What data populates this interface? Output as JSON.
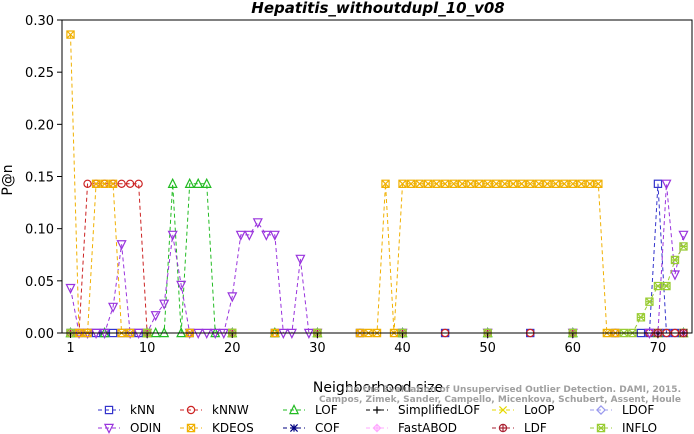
{
  "chart_data": {
    "type": "line",
    "title": "Hepatitis_withoutdupl_10_v08",
    "xlabel": "Neighborhood size",
    "ylabel": "P@n",
    "xlim": [
      0,
      74
    ],
    "ylim": [
      0,
      0.3
    ],
    "xticks": [
      1,
      10,
      20,
      30,
      40,
      50,
      60,
      70
    ],
    "yticks": [
      "0.00",
      "0.05",
      "0.10",
      "0.15",
      "0.20",
      "0.25",
      "0.30"
    ],
    "grid": false,
    "legend_position": "bottom",
    "watermark": [
      "Campos, Zimek, Sander, Campello, Micenkova, Schubert, Assent, Houle",
      "On the Evaluation of Unsupervised Outlier Detection. DAMI, 2015."
    ],
    "series": [
      {
        "name": "kNN",
        "color": "#3333cc",
        "marker": "square",
        "points": [
          [
            1,
            0
          ],
          [
            2,
            0
          ],
          [
            3,
            0
          ],
          [
            4,
            0
          ],
          [
            5,
            0
          ],
          [
            6,
            0
          ],
          [
            7,
            0
          ],
          [
            8,
            0
          ],
          [
            9,
            0
          ],
          [
            10,
            0
          ],
          [
            15,
            0
          ],
          [
            20,
            0
          ],
          [
            25,
            0
          ],
          [
            30,
            0
          ],
          [
            35,
            0
          ],
          [
            40,
            0
          ],
          [
            45,
            0
          ],
          [
            50,
            0
          ],
          [
            55,
            0
          ],
          [
            60,
            0
          ],
          [
            65,
            0
          ],
          [
            68,
            0
          ],
          [
            69,
            0
          ],
          [
            70,
            0.143
          ],
          [
            71,
            0
          ],
          [
            72,
            0
          ],
          [
            73,
            0
          ]
        ]
      },
      {
        "name": "kNNW",
        "color": "#cc2222",
        "marker": "circle",
        "points": [
          [
            1,
            0
          ],
          [
            2,
            0
          ],
          [
            3,
            0.143
          ],
          [
            4,
            0.143
          ],
          [
            5,
            0.143
          ],
          [
            6,
            0.143
          ],
          [
            7,
            0.143
          ],
          [
            8,
            0.143
          ],
          [
            9,
            0.143
          ],
          [
            10,
            0
          ],
          [
            15,
            0
          ],
          [
            20,
            0
          ],
          [
            25,
            0
          ],
          [
            30,
            0
          ],
          [
            35,
            0
          ],
          [
            40,
            0
          ],
          [
            45,
            0
          ],
          [
            50,
            0
          ],
          [
            55,
            0
          ],
          [
            60,
            0
          ],
          [
            65,
            0
          ],
          [
            69,
            0
          ],
          [
            70,
            0
          ],
          [
            71,
            0
          ],
          [
            72,
            0
          ],
          [
            73,
            0
          ]
        ]
      },
      {
        "name": "LOF",
        "color": "#22bb22",
        "marker": "triangle-up",
        "points": [
          [
            1,
            0
          ],
          [
            5,
            0
          ],
          [
            10,
            0
          ],
          [
            11,
            0
          ],
          [
            12,
            0
          ],
          [
            13,
            0.143
          ],
          [
            14,
            0
          ],
          [
            15,
            0.143
          ],
          [
            16,
            0.143
          ],
          [
            17,
            0.143
          ],
          [
            18,
            0
          ],
          [
            20,
            0
          ],
          [
            25,
            0
          ],
          [
            30,
            0
          ],
          [
            40,
            0
          ],
          [
            50,
            0
          ],
          [
            60,
            0
          ],
          [
            70,
            0
          ],
          [
            73,
            0
          ]
        ]
      },
      {
        "name": "SimplifiedLOF",
        "color": "#000000",
        "marker": "plus",
        "points": [
          [
            1,
            0
          ],
          [
            10,
            0
          ],
          [
            20,
            0
          ],
          [
            30,
            0
          ],
          [
            40,
            0
          ],
          [
            50,
            0
          ],
          [
            60,
            0
          ],
          [
            70,
            0
          ],
          [
            73,
            0
          ]
        ]
      },
      {
        "name": "LoOP",
        "color": "#e6d800",
        "marker": "x",
        "points": [
          [
            1,
            0
          ],
          [
            10,
            0
          ],
          [
            20,
            0
          ],
          [
            30,
            0
          ],
          [
            40,
            0
          ],
          [
            50,
            0
          ],
          [
            60,
            0
          ],
          [
            70,
            0
          ],
          [
            73,
            0
          ]
        ]
      },
      {
        "name": "LDOF",
        "color": "#9999ee",
        "marker": "diamond",
        "points": [
          [
            1,
            0
          ],
          [
            10,
            0
          ],
          [
            20,
            0
          ],
          [
            30,
            0
          ],
          [
            40,
            0
          ],
          [
            50,
            0
          ],
          [
            60,
            0
          ],
          [
            70,
            0
          ],
          [
            73,
            0
          ]
        ]
      },
      {
        "name": "ODIN",
        "color": "#9933dd",
        "marker": "triangle-down",
        "points": [
          [
            1,
            0.043
          ],
          [
            2,
            0
          ],
          [
            3,
            0
          ],
          [
            4,
            0
          ],
          [
            5,
            0
          ],
          [
            6,
            0.025
          ],
          [
            7,
            0.085
          ],
          [
            8,
            0
          ],
          [
            9,
            0
          ],
          [
            10,
            0
          ],
          [
            11,
            0.017
          ],
          [
            12,
            0.028
          ],
          [
            13,
            0.094
          ],
          [
            14,
            0.046
          ],
          [
            15,
            0
          ],
          [
            16,
            0
          ],
          [
            17,
            0
          ],
          [
            18,
            0
          ],
          [
            19,
            0
          ],
          [
            20,
            0.035
          ],
          [
            21,
            0.094
          ],
          [
            22,
            0.094
          ],
          [
            23,
            0.106
          ],
          [
            24,
            0.094
          ],
          [
            25,
            0.094
          ],
          [
            26,
            0
          ],
          [
            27,
            0
          ],
          [
            28,
            0.071
          ],
          [
            29,
            0
          ],
          [
            30,
            0
          ],
          [
            40,
            0
          ],
          [
            50,
            0
          ],
          [
            60,
            0
          ],
          [
            69,
            0
          ],
          [
            70,
            0
          ],
          [
            71,
            0.143
          ],
          [
            72,
            0.056
          ],
          [
            73,
            0.094
          ]
        ]
      },
      {
        "name": "KDEOS",
        "color": "#f0b000",
        "marker": "square-x",
        "points": [
          [
            1,
            0.286
          ],
          [
            2,
            0
          ],
          [
            3,
            0
          ],
          [
            4,
            0.143
          ],
          [
            5,
            0.143
          ],
          [
            6,
            0.143
          ],
          [
            7,
            0
          ],
          [
            8,
            0
          ],
          [
            10,
            0
          ],
          [
            15,
            0
          ],
          [
            20,
            0
          ],
          [
            25,
            0
          ],
          [
            30,
            0
          ],
          [
            35,
            0
          ],
          [
            36,
            0
          ],
          [
            37,
            0
          ],
          [
            38,
            0.143
          ],
          [
            39,
            0
          ],
          [
            40,
            0.143
          ],
          [
            41,
            0.143
          ],
          [
            42,
            0.143
          ],
          [
            43,
            0.143
          ],
          [
            44,
            0.143
          ],
          [
            45,
            0.143
          ],
          [
            46,
            0.143
          ],
          [
            47,
            0.143
          ],
          [
            48,
            0.143
          ],
          [
            49,
            0.143
          ],
          [
            50,
            0.143
          ],
          [
            51,
            0.143
          ],
          [
            52,
            0.143
          ],
          [
            53,
            0.143
          ],
          [
            54,
            0.143
          ],
          [
            55,
            0.143
          ],
          [
            56,
            0.143
          ],
          [
            57,
            0.143
          ],
          [
            58,
            0.143
          ],
          [
            59,
            0.143
          ],
          [
            60,
            0.143
          ],
          [
            61,
            0.143
          ],
          [
            62,
            0.143
          ],
          [
            63,
            0.143
          ],
          [
            64,
            0
          ],
          [
            65,
            0
          ],
          [
            70,
            0
          ],
          [
            73,
            0
          ]
        ]
      },
      {
        "name": "COF",
        "color": "#000080",
        "marker": "asterisk",
        "points": [
          [
            1,
            0
          ],
          [
            10,
            0
          ],
          [
            20,
            0
          ],
          [
            30,
            0
          ],
          [
            40,
            0
          ],
          [
            50,
            0
          ],
          [
            60,
            0
          ],
          [
            70,
            0
          ],
          [
            73,
            0
          ]
        ]
      },
      {
        "name": "FastABOD",
        "color": "#ffaaff",
        "marker": "diamond-plus",
        "points": [
          [
            1,
            0
          ],
          [
            10,
            0
          ],
          [
            20,
            0
          ],
          [
            30,
            0
          ],
          [
            40,
            0
          ],
          [
            50,
            0
          ],
          [
            60,
            0
          ],
          [
            70,
            0
          ],
          [
            73,
            0
          ]
        ]
      },
      {
        "name": "LDF",
        "color": "#aa2233",
        "marker": "circle-plus",
        "points": [
          [
            1,
            0
          ],
          [
            10,
            0
          ],
          [
            20,
            0
          ],
          [
            30,
            0
          ],
          [
            40,
            0
          ],
          [
            50,
            0
          ],
          [
            60,
            0
          ],
          [
            70,
            0
          ],
          [
            73,
            0
          ]
        ]
      },
      {
        "name": "INFLO",
        "color": "#99cc33",
        "marker": "square-xx",
        "points": [
          [
            1,
            0
          ],
          [
            10,
            0
          ],
          [
            20,
            0
          ],
          [
            30,
            0
          ],
          [
            40,
            0
          ],
          [
            50,
            0
          ],
          [
            60,
            0
          ],
          [
            66,
            0
          ],
          [
            67,
            0
          ],
          [
            68,
            0.015
          ],
          [
            69,
            0.03
          ],
          [
            70,
            0.045
          ],
          [
            71,
            0.045
          ],
          [
            72,
            0.07
          ],
          [
            73,
            0.083
          ]
        ]
      }
    ]
  }
}
